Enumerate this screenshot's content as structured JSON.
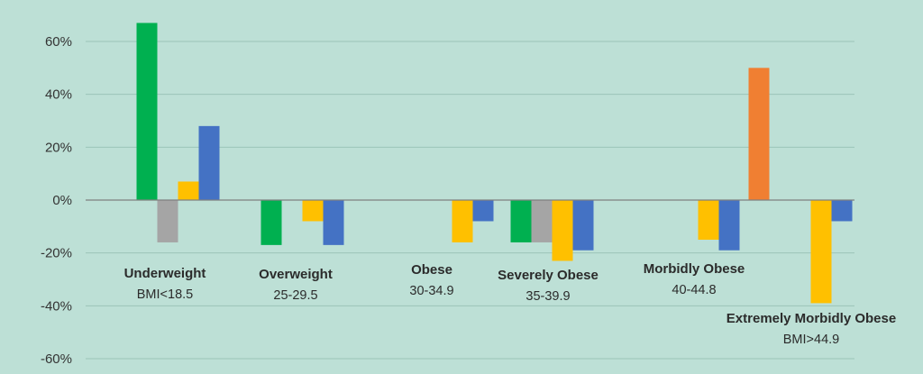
{
  "chart_data": {
    "type": "bar",
    "title": "",
    "xlabel": "",
    "ylabel": "",
    "ylim": [
      -0.6,
      0.6
    ],
    "y_ticks": [
      "60%",
      "40%",
      "20%",
      "0%",
      "-20%",
      "-40%",
      "-60%"
    ],
    "y_tick_values": [
      0.6,
      0.4,
      0.2,
      0.0,
      -0.2,
      -0.4,
      -0.6
    ],
    "grid": true,
    "legend": "none",
    "categories": [
      {
        "name": "Underweight",
        "range": "BMI<18.5"
      },
      {
        "name": "Overweight",
        "range": "25-29.5"
      },
      {
        "name": "Obese",
        "range": "30-34.9"
      },
      {
        "name": "Severely Obese",
        "range": "35-39.9"
      },
      {
        "name": "Morbidly Obese",
        "range": "40-44.8"
      },
      {
        "name": "Extremely Morbidly Obese",
        "range": "BMI>44.9"
      }
    ],
    "series": [
      {
        "color": "#f07f32",
        "values": [
          null,
          null,
          null,
          null,
          null,
          0.5
        ]
      },
      {
        "color": "#00b050",
        "values": [
          0.67,
          -0.17,
          null,
          -0.16,
          null,
          null
        ]
      },
      {
        "color": "#a5a5a5",
        "values": [
          -0.16,
          null,
          null,
          -0.16,
          null,
          null
        ]
      },
      {
        "color": "#ffc000",
        "values": [
          0.07,
          -0.08,
          -0.16,
          -0.23,
          -0.15,
          -0.39
        ]
      },
      {
        "color": "#4472c4",
        "values": [
          0.28,
          -0.17,
          -0.08,
          -0.19,
          -0.19,
          -0.08
        ]
      }
    ]
  }
}
